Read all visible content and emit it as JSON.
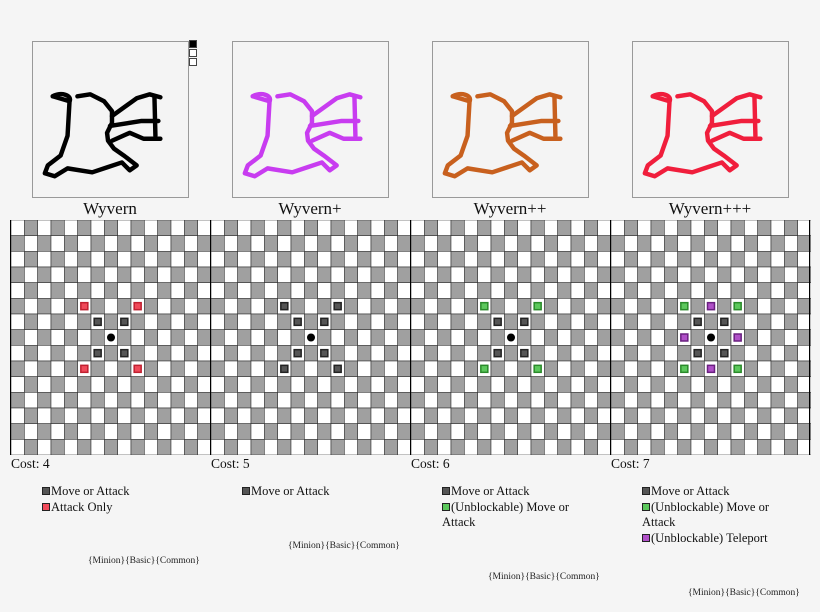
{
  "boards": [
    {
      "name": "Wyvern",
      "cost": "Cost: 4",
      "color": "#000000",
      "legend": [
        {
          "label": "Move or Attack",
          "swatch": "#555555"
        },
        {
          "label": "Attack Only",
          "swatch": "#f04a5a"
        }
      ],
      "marks": [
        {
          "dx": -1,
          "dy": -1,
          "type": "dark"
        },
        {
          "dx": 1,
          "dy": -1,
          "type": "dark"
        },
        {
          "dx": -1,
          "dy": 1,
          "type": "dark"
        },
        {
          "dx": 1,
          "dy": 1,
          "type": "dark"
        },
        {
          "dx": -2,
          "dy": -2,
          "type": "red"
        },
        {
          "dx": 2,
          "dy": -2,
          "type": "red"
        },
        {
          "dx": -2,
          "dy": 2,
          "type": "red"
        },
        {
          "dx": 2,
          "dy": 2,
          "type": "red"
        }
      ],
      "tags": "{Minion}{Basic}{Common}"
    },
    {
      "name": "Wyvern+",
      "cost": "Cost: 5",
      "color": "#c83cf0",
      "legend": [
        {
          "label": "Move or Attack",
          "swatch": "#555555"
        }
      ],
      "marks": [
        {
          "dx": -1,
          "dy": -1,
          "type": "dark"
        },
        {
          "dx": 1,
          "dy": -1,
          "type": "dark"
        },
        {
          "dx": -1,
          "dy": 1,
          "type": "dark"
        },
        {
          "dx": 1,
          "dy": 1,
          "type": "dark"
        },
        {
          "dx": -2,
          "dy": -2,
          "type": "dark"
        },
        {
          "dx": 2,
          "dy": -2,
          "type": "dark"
        },
        {
          "dx": -2,
          "dy": 2,
          "type": "dark"
        },
        {
          "dx": 2,
          "dy": 2,
          "type": "dark"
        }
      ],
      "tags": "{Minion}{Basic}{Common}"
    },
    {
      "name": "Wyvern++",
      "cost": "Cost: 6",
      "color": "#c8601e",
      "legend": [
        {
          "label": "Move or Attack",
          "swatch": "#555555"
        },
        {
          "label": "(Unblockable) Move or Attack",
          "swatch": "#5cc85c"
        }
      ],
      "marks": [
        {
          "dx": -1,
          "dy": -1,
          "type": "dark"
        },
        {
          "dx": 1,
          "dy": -1,
          "type": "dark"
        },
        {
          "dx": -1,
          "dy": 1,
          "type": "dark"
        },
        {
          "dx": 1,
          "dy": 1,
          "type": "dark"
        },
        {
          "dx": -2,
          "dy": -2,
          "type": "green"
        },
        {
          "dx": 2,
          "dy": -2,
          "type": "green"
        },
        {
          "dx": -2,
          "dy": 2,
          "type": "green"
        },
        {
          "dx": 2,
          "dy": 2,
          "type": "green"
        }
      ],
      "tags": "{Minion}{Basic}{Common}"
    },
    {
      "name": "Wyvern+++",
      "cost": "Cost: 7",
      "color": "#f01e3c",
      "legend": [
        {
          "label": "Move or Attack",
          "swatch": "#555555"
        },
        {
          "label": "(Unblockable) Move or Attack",
          "swatch": "#5cc85c"
        },
        {
          "label": "(Unblockable) Teleport",
          "swatch": "#b050c8"
        }
      ],
      "marks": [
        {
          "dx": -1,
          "dy": -1,
          "type": "dark"
        },
        {
          "dx": 1,
          "dy": -1,
          "type": "dark"
        },
        {
          "dx": -1,
          "dy": 1,
          "type": "dark"
        },
        {
          "dx": 1,
          "dy": 1,
          "type": "dark"
        },
        {
          "dx": -2,
          "dy": -2,
          "type": "green"
        },
        {
          "dx": 2,
          "dy": -2,
          "type": "green"
        },
        {
          "dx": -2,
          "dy": 2,
          "type": "green"
        },
        {
          "dx": 2,
          "dy": 2,
          "type": "green"
        },
        {
          "dx": 0,
          "dy": -2,
          "type": "purple"
        },
        {
          "dx": -2,
          "dy": 0,
          "type": "purple"
        },
        {
          "dx": 2,
          "dy": 0,
          "type": "purple"
        },
        {
          "dx": 0,
          "dy": 2,
          "type": "purple"
        }
      ],
      "tags": "{Minion}{Basic}{Common}"
    }
  ],
  "mark_colors": {
    "dark": [
      "#555555",
      "#222222"
    ],
    "red": [
      "#f04a5a",
      "#c02030"
    ],
    "green": [
      "#5cc85c",
      "#2a8a2a"
    ],
    "purple": [
      "#b050c8",
      "#6a2080"
    ]
  },
  "grid": {
    "cols": 15,
    "rows": 15
  }
}
